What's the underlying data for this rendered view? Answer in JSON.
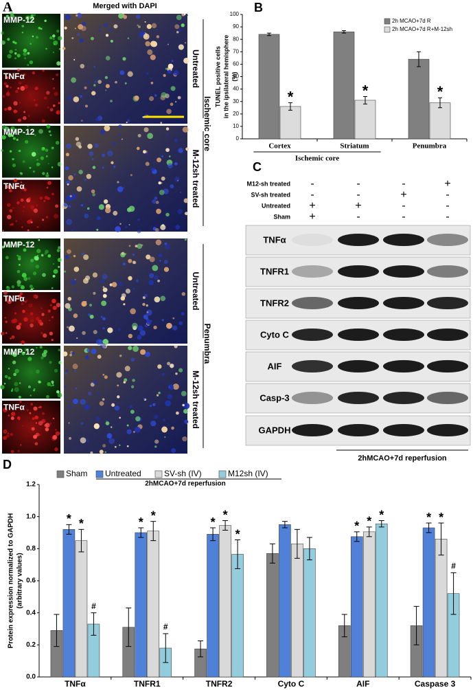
{
  "panel_a": {
    "letter": "A",
    "title": "Merged with DAPI",
    "blocks": [
      {
        "green": "MMP-12",
        "red": "TNFα",
        "condition": "Untreated"
      },
      {
        "green": "MMP-12",
        "red": "TNFα",
        "condition": "M-12sh treated"
      },
      {
        "green": "MMP-12",
        "red": "TNFα",
        "condition": "Untreated"
      },
      {
        "green": "MMP-12",
        "red": "TNFα",
        "condition": "M-12sh treated"
      }
    ],
    "regions": [
      "Ischemic core",
      "Penumbra"
    ]
  },
  "panel_c": {
    "letter": "C",
    "treatments": [
      {
        "label": "M12-sh treated",
        "signs": [
          "-",
          "-",
          "-",
          "+"
        ]
      },
      {
        "label": "SV-sh treated",
        "signs": [
          "-",
          "-",
          "+",
          "-"
        ]
      },
      {
        "label": "Untreated",
        "signs": [
          "+",
          "+",
          "-",
          "-"
        ]
      },
      {
        "label": "Sham",
        "signs": [
          "+",
          "-",
          "-",
          "-"
        ]
      }
    ],
    "blots": [
      "TNFα",
      "TNFR1",
      "TNFR2",
      "Cyto C",
      "AIF",
      "Casp-3",
      "GAPDH"
    ],
    "footer": "2hMCAO+7d reperfusion"
  },
  "chart_data": [
    {
      "type": "bar",
      "letter": "B",
      "ylabel": [
        "TUNEL positive cells",
        "in the ipsilateral hemisphere",
        "(%)"
      ],
      "categories": [
        "Cortex",
        "Striatum",
        "Penumbra"
      ],
      "group_label": "Ischemic core",
      "series": [
        {
          "name": "2h MCAO+7d R",
          "color": "#808080",
          "values": [
            84,
            86,
            64
          ],
          "errors": [
            1,
            1,
            6
          ],
          "markers": [
            null,
            null,
            null
          ]
        },
        {
          "name": "2h MCAO+7d R+M-12sh",
          "color": "#dcdcdc",
          "values": [
            26,
            31,
            29
          ],
          "errors": [
            3,
            3,
            4
          ],
          "markers": [
            "*",
            "*",
            "*"
          ]
        }
      ],
      "ylim": [
        0,
        100
      ],
      "yticks": [
        0,
        10,
        20,
        30,
        40,
        50,
        60,
        70,
        80,
        90,
        100
      ],
      "legend": "top-right",
      "grid": false
    },
    {
      "type": "bar",
      "letter": "D",
      "ylabel": [
        "Protein expression normalized to GAPDH",
        "(arbitrary values)"
      ],
      "subtitle": "2hMCAO+7d reperfusion",
      "categories": [
        "TNFα",
        "TNFR1",
        "TNFR2",
        "Cyto C",
        "AIF",
        "Caspase 3"
      ],
      "series": [
        {
          "name": "Sham",
          "color": "#7f7f7f",
          "values": [
            0.29,
            0.31,
            0.175,
            0.77,
            0.32,
            0.32
          ],
          "errors": [
            0.1,
            0.12,
            0.05,
            0.06,
            0.07,
            0.12
          ],
          "markers": [
            null,
            null,
            null,
            null,
            null,
            null
          ]
        },
        {
          "name": "Untreated",
          "color": "#4f81d8",
          "values": [
            0.92,
            0.9,
            0.89,
            0.95,
            0.875,
            0.93
          ],
          "errors": [
            0.03,
            0.03,
            0.04,
            0.02,
            0.03,
            0.03
          ],
          "markers": [
            "*",
            "*",
            "*",
            null,
            "*",
            "*"
          ]
        },
        {
          "name": "SV-sh (IV)",
          "color": "#d9d9d9",
          "values": [
            0.85,
            0.91,
            0.945,
            0.83,
            0.905,
            0.86
          ],
          "errors": [
            0.07,
            0.06,
            0.03,
            0.09,
            0.03,
            0.1
          ],
          "markers": [
            "*",
            "*",
            "*",
            null,
            "*",
            "*"
          ]
        },
        {
          "name": "M12sh (IV)",
          "color": "#93cddd",
          "values": [
            0.33,
            0.18,
            0.765,
            0.8,
            0.955,
            0.52
          ],
          "errors": [
            0.07,
            0.09,
            0.09,
            0.07,
            0.02,
            0.13
          ],
          "markers": [
            "#",
            "#",
            "*",
            null,
            "*",
            "#"
          ]
        }
      ],
      "ylim": [
        0,
        1.2
      ],
      "yticks": [
        {
          "value": 0,
          "label": "0.0"
        },
        0.2,
        0.4,
        0.6,
        0.8,
        {
          "value": 1,
          "label": "1.0"
        },
        1.2
      ],
      "legend": "top",
      "grid": false
    }
  ]
}
